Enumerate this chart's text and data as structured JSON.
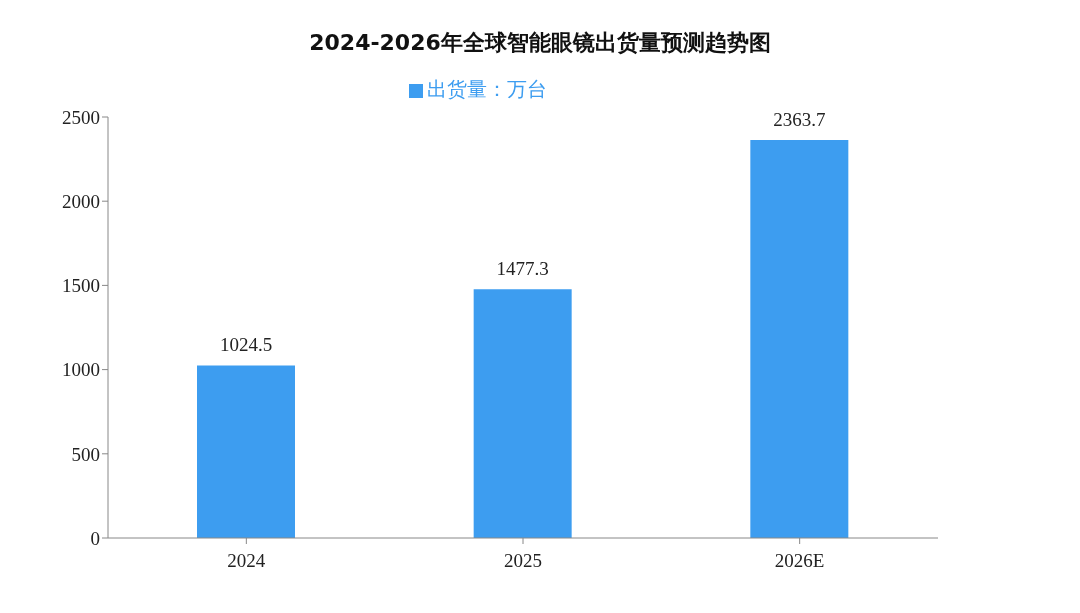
{
  "chart_data": {
    "type": "bar",
    "title": "2024-2026年全球智能眼镜出货量预测趋势图",
    "categories": [
      "2024",
      "2025",
      "2026E"
    ],
    "series": [
      {
        "name": "出货量：万台",
        "color": "#3d9df0",
        "values": [
          1024.5,
          1477.3,
          2363.7
        ]
      }
    ],
    "ylim": [
      0,
      2500
    ],
    "yticks": [
      0,
      500,
      1000,
      1500,
      2000,
      2500
    ],
    "grid": false,
    "legend": "top",
    "data_labels": true
  }
}
